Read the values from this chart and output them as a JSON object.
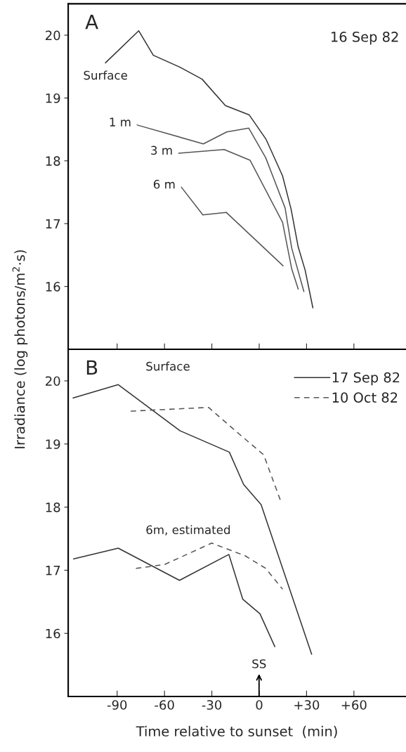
{
  "chart_data": [
    {
      "type": "line",
      "xlim": [
        -121,
        93
      ],
      "ylim": [
        15.0,
        20.5
      ],
      "xticks": [
        {
          "value": -90,
          "label": null
        },
        {
          "value": -60,
          "label": null
        },
        {
          "value": -30,
          "label": null
        },
        {
          "value": 0,
          "label": null
        },
        {
          "value": 30,
          "label": null
        },
        {
          "value": 60,
          "label": null
        }
      ],
      "yticks": [
        16,
        17,
        18,
        19,
        20
      ],
      "tick_labels": "y",
      "grid": false,
      "legend": false,
      "marker": "none",
      "series": [
        {
          "color": "#333333",
          "x": [
            -97.4,
            -76.3,
            -67.1,
            -50.2,
            -36.2,
            -21.4,
            -6.3,
            4.4,
            14.8,
            20.2,
            24.7,
            29.1,
            34.0
          ],
          "values": [
            19.56,
            20.07,
            19.68,
            19.49,
            19.3,
            18.88,
            18.73,
            18.34,
            17.76,
            17.23,
            16.63,
            16.26,
            15.66
          ]
        },
        {
          "color": "#555555",
          "x": [
            -77.3,
            -35.4,
            -20.6,
            -6.6,
            4.1,
            16.4,
            20.6,
            28.3
          ],
          "values": [
            18.57,
            18.27,
            18.46,
            18.52,
            18.05,
            17.25,
            16.61,
            15.92
          ]
        },
        {
          "color": "#555555",
          "x": [
            -51.0,
            -22.2,
            -5.8,
            14.8,
            20.6,
            24.7
          ],
          "values": [
            18.12,
            18.18,
            18.01,
            17.02,
            16.28,
            15.96
          ]
        },
        {
          "color": "#555555",
          "x": [
            -49.3,
            -35.7,
            -20.9,
            15.1
          ],
          "values": [
            17.58,
            17.14,
            17.18,
            16.33
          ]
        }
      ],
      "annotations": [
        "A",
        "16 Sep 82",
        {
          "text": "Surface",
          "x": -97.4,
          "y": 19.56
        },
        {
          "text": "1 m",
          "x": -77.3,
          "y": 18.57
        },
        {
          "text": "3 m",
          "x": -51.0,
          "y": 18.12
        },
        {
          "text": "6 m",
          "x": -49.3,
          "y": 17.58
        }
      ]
    },
    {
      "type": "line",
      "xlim": [
        -121,
        93
      ],
      "ylim": [
        15.0,
        20.5
      ],
      "xticks": [
        -90,
        -60,
        -30,
        0,
        {
          "value": 30,
          "label": "+30"
        },
        {
          "value": 60,
          "label": "+60"
        }
      ],
      "yticks": [
        16,
        17,
        18,
        19,
        20
      ],
      "grid": false,
      "legend": "top right",
      "marker": "none",
      "xlabel": "Time relative to sunset  (min)",
      "ylabel": "Irradiance (log photons/m$^{2}$·s)",
      "series": [
        {
          "name": "17 Sep 82",
          "color": "#333333",
          "line_style": "solid",
          "x": [
            -117.9,
            -89.3,
            -50.2,
            -18.9,
            -9.9,
            1.2,
            33.2
          ],
          "values": [
            19.73,
            19.94,
            19.21,
            18.87,
            18.36,
            18.04,
            15.67
          ]
        },
        {
          "name": "10 Oct 82",
          "color": "#555555",
          "line_style": "dashed",
          "x": [
            -81.4,
            -32.1,
            -12.3,
            2.8,
            13.7
          ],
          "values": [
            19.52,
            19.58,
            19.15,
            18.83,
            18.09
          ]
        },
        {
          "color": "#333333",
          "line_style": "solid",
          "x": [
            -117.6,
            -89.3,
            -50.5,
            -19.2,
            -10.4,
            0.5,
            9.9
          ],
          "values": [
            17.18,
            17.35,
            16.84,
            17.25,
            16.54,
            16.31,
            15.79
          ]
        },
        {
          "color": "#555555",
          "line_style": "dashed",
          "x": [
            -78.1,
            -60.0,
            -30.1,
            -9.0,
            4.1,
            14.8
          ],
          "values": [
            17.03,
            17.09,
            17.43,
            17.23,
            17.03,
            16.7
          ]
        }
      ],
      "annotations": [
        "B",
        {
          "text": "Surface",
          "x": -89.3,
          "y": 19.94
        },
        {
          "text": "6m, estimated",
          "x": -89.3,
          "y": 17.35
        },
        "SS"
      ]
    }
  ]
}
